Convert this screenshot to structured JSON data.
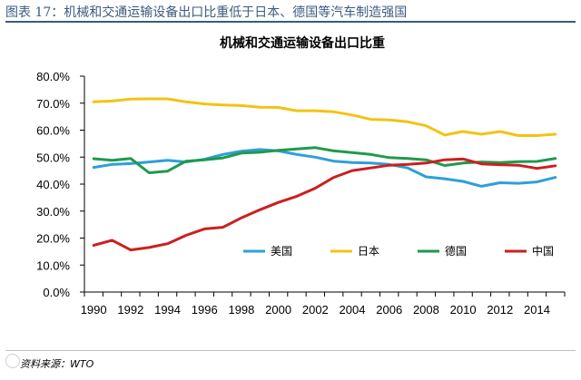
{
  "header": {
    "title": "图表 17：机械和交通运输设备出口比重低于日本、德国等汽车制造强国"
  },
  "footer": {
    "source": "资料来源：WTO"
  },
  "chart_data": {
    "type": "line",
    "title": "机械和交通运输设备出口比重",
    "xlabel": "",
    "ylabel": "",
    "ylim": [
      0,
      80
    ],
    "y_tick_labels": [
      "0.0%",
      "10.0%",
      "20.0%",
      "30.0%",
      "40.0%",
      "50.0%",
      "60.0%",
      "70.0%",
      "80.0%"
    ],
    "x_tick_labels": [
      "1990",
      "1992",
      "1994",
      "1996",
      "1998",
      "2000",
      "2002",
      "2004",
      "2006",
      "2008",
      "2010",
      "2012",
      "2014"
    ],
    "grid": false,
    "legend_position": "bottom-right",
    "x": [
      1990,
      1991,
      1992,
      1993,
      1994,
      1995,
      1996,
      1997,
      1998,
      1999,
      2000,
      2001,
      2002,
      2003,
      2004,
      2005,
      2006,
      2007,
      2008,
      2009,
      2010,
      2011,
      2012,
      2013,
      2014,
      2015
    ],
    "series": [
      {
        "name": "美国",
        "color": "#2e9fd8",
        "values": [
          46.2,
          47.3,
          47.6,
          48.2,
          48.8,
          48.2,
          49.2,
          51.0,
          52.2,
          52.8,
          52.3,
          51.0,
          50.0,
          48.5,
          48.0,
          47.8,
          47.3,
          46.0,
          42.7,
          42.0,
          41.0,
          39.2,
          40.5,
          40.3,
          40.8,
          42.5
        ]
      },
      {
        "name": "日本",
        "color": "#f2c314",
        "values": [
          70.5,
          70.8,
          71.5,
          71.6,
          71.6,
          70.5,
          69.7,
          69.3,
          69.1,
          68.5,
          68.4,
          67.2,
          67.2,
          66.8,
          65.6,
          64.0,
          63.8,
          63.1,
          61.6,
          58.2,
          59.5,
          58.5,
          59.5,
          58.0,
          58.0,
          58.5
        ]
      },
      {
        "name": "德国",
        "color": "#1f9a4c",
        "values": [
          49.4,
          48.8,
          49.5,
          44.2,
          44.8,
          48.5,
          49.0,
          49.7,
          51.5,
          51.8,
          52.5,
          53.0,
          53.5,
          52.3,
          51.7,
          51.0,
          49.8,
          49.5,
          49.0,
          46.9,
          47.8,
          48.2,
          48.0,
          48.3,
          48.4,
          49.5
        ]
      },
      {
        "name": "中国",
        "color": "#cc1f1f",
        "values": [
          17.3,
          19.2,
          15.6,
          16.5,
          17.9,
          21.0,
          23.4,
          24.0,
          27.5,
          30.5,
          33.2,
          35.5,
          38.5,
          42.5,
          45.0,
          46.0,
          47.0,
          47.3,
          47.8,
          49.0,
          49.3,
          47.5,
          47.2,
          47.0,
          45.8,
          46.8
        ]
      }
    ]
  }
}
